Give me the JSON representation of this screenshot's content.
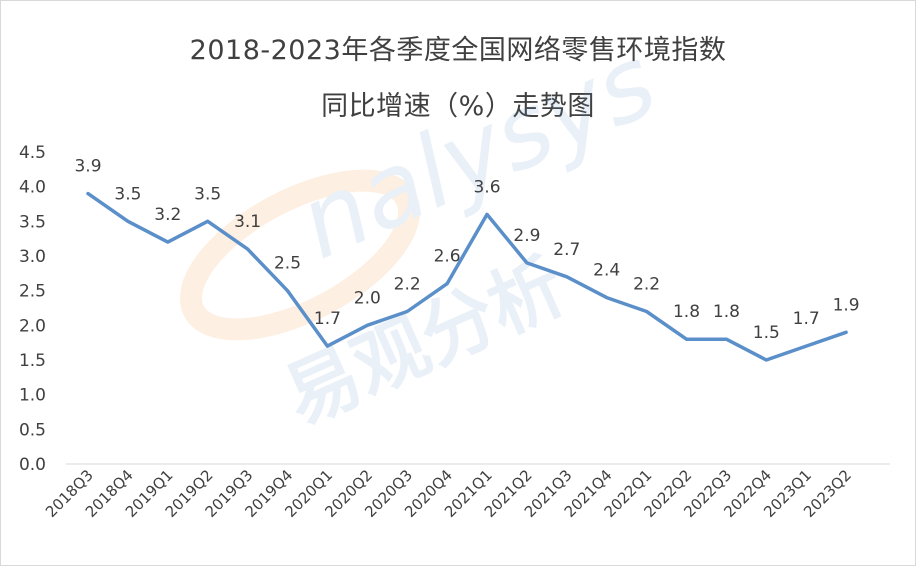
{
  "chart_data": {
    "type": "line",
    "title": "2018-2023年各季度全国网络零售环境指数",
    "subtitle": "同比增速（%）走势图",
    "categories": [
      "2018Q3",
      "2018Q4",
      "2019Q1",
      "2019Q2",
      "2019Q3",
      "2019Q4",
      "2020Q1",
      "2020Q2",
      "2020Q3",
      "2020Q4",
      "2021Q1",
      "2021Q2",
      "2021Q3",
      "2021Q4",
      "2022Q1",
      "2022Q2",
      "2022Q3",
      "2022Q4",
      "2023Q1",
      "2023Q2"
    ],
    "values": [
      3.9,
      3.5,
      3.2,
      3.5,
      3.1,
      2.5,
      1.7,
      2.0,
      2.2,
      2.6,
      3.6,
      2.9,
      2.7,
      2.4,
      2.2,
      1.8,
      1.8,
      1.5,
      1.7,
      1.9
    ],
    "value_labels": [
      "3.9",
      "3.5",
      "3.2",
      "3.5",
      "3.1",
      "2.5",
      "1.7",
      "2.0",
      "2.2",
      "2.6",
      "3.6",
      "2.9",
      "2.7",
      "2.4",
      "2.2",
      "1.8",
      "1.8",
      "1.5",
      "1.7",
      "1.9"
    ],
    "ylim": [
      0,
      4.5
    ],
    "yticks": [
      "0.0",
      "0.5",
      "1.0",
      "1.5",
      "2.0",
      "2.5",
      "3.0",
      "3.5",
      "4.0",
      "4.5"
    ],
    "grid": false,
    "legend": "none",
    "line_color": "#5b8fc9"
  },
  "watermark": {
    "brand": "analysys",
    "cn": "易观分析"
  }
}
